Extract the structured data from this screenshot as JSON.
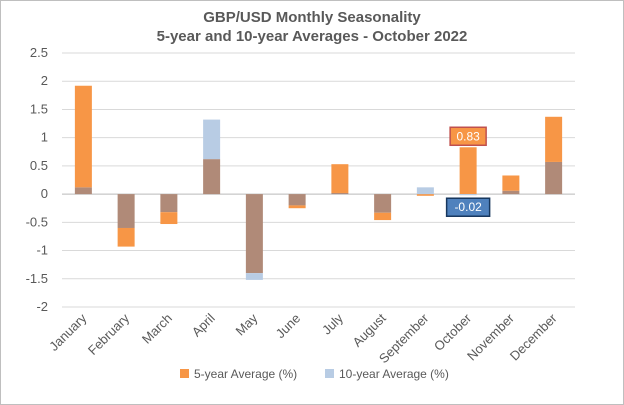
{
  "chart_data": {
    "type": "bar",
    "title": "GBP/USD Monthly Seasonality",
    "subtitle": "5-year and 10-year Averages - October 2022",
    "categories": [
      "January",
      "February",
      "March",
      "April",
      "May",
      "June",
      "July",
      "August",
      "September",
      "October",
      "November",
      "December"
    ],
    "series": [
      {
        "name": "5-year Average (%)",
        "color": "#f79646",
        "values": [
          1.92,
          -0.93,
          -0.53,
          0.62,
          -1.4,
          -0.25,
          0.53,
          -0.46,
          -0.03,
          0.83,
          0.33,
          1.37
        ]
      },
      {
        "name": "10-year Average (%)",
        "color": "#b8cce4",
        "values": [
          0.12,
          -0.6,
          -0.32,
          1.32,
          -1.52,
          -0.2,
          0.02,
          -0.33,
          0.12,
          -0.02,
          0.06,
          0.57
        ]
      }
    ],
    "overlap_color": "#b08a78",
    "ylim": [
      -2,
      2.5
    ],
    "yticks": [
      "2.5",
      "2",
      "1.5",
      "1",
      "0.5",
      "0",
      "-0.5",
      "-1",
      "-1.5",
      "-2"
    ],
    "grid": true,
    "legend": "bottom",
    "annotations": [
      {
        "label": "0.83",
        "category": "October",
        "series": "5-year Average (%)",
        "fill": "#f79646",
        "stroke": "#c0504d"
      },
      {
        "label": "-0.02",
        "category": "October",
        "series": "10-year Average (%)",
        "fill": "#4f81bd",
        "stroke": "#17375e"
      }
    ]
  }
}
